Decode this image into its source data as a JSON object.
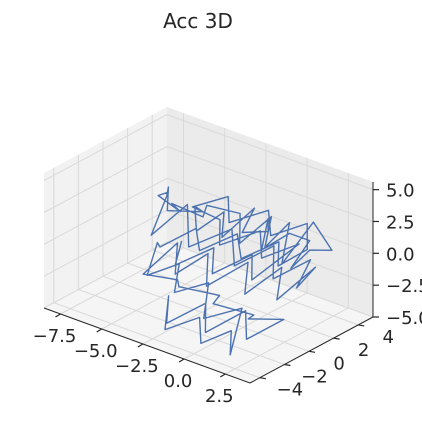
{
  "chart_data": {
    "type": "line",
    "title": "Acc 3D",
    "projection": "3d",
    "x": {
      "ticks": [
        -7.5,
        -5.0,
        -2.5,
        0.0,
        2.5
      ],
      "tick_labels": [
        "−7.5",
        "−5.0",
        "−2.5",
        "0.0",
        "2.5"
      ],
      "range": [
        -8.5,
        4.0
      ]
    },
    "y": {
      "ticks": [
        -4,
        -2,
        0,
        2,
        4
      ],
      "tick_labels": [
        "−4",
        "−2",
        "0",
        "2",
        "4"
      ],
      "range": [
        -4.8,
        5.2
      ]
    },
    "z": {
      "ticks": [
        -5.0,
        -2.5,
        0.0,
        2.5,
        5.0
      ],
      "tick_labels": [
        "−5.0",
        "−2.5",
        "0.0",
        "2.5",
        "5.0"
      ],
      "range": [
        -5.0,
        5.6
      ]
    },
    "grid": true,
    "colors": {
      "series": "#4c72b0",
      "pane_left": "#f2f2f2",
      "pane_back": "#ebebeb",
      "pane_floor": "#f5f5f5"
    },
    "series": [
      {
        "name": "",
        "points_xyz": [
          [
            -6.5,
            2.5,
            1.0
          ],
          [
            -5.8,
            1.7,
            2.4
          ],
          [
            -5.2,
            0.8,
            1.3
          ],
          [
            -4.6,
            2.9,
            0.4
          ],
          [
            -3.9,
            1.3,
            2.0
          ],
          [
            -3.2,
            0.5,
            0.8
          ],
          [
            -2.8,
            2.2,
            1.6
          ],
          [
            -2.1,
            1.1,
            0.5
          ],
          [
            -1.7,
            3.2,
            1.9
          ],
          [
            -1.1,
            1.4,
            1.2
          ],
          [
            -0.5,
            2.7,
            0.9
          ],
          [
            0.1,
            1.9,
            2.6
          ],
          [
            0.6,
            0.7,
            1.0
          ],
          [
            1.1,
            2.3,
            1.7
          ],
          [
            1.8,
            3.0,
            1.1
          ],
          [
            2.3,
            0.8,
            0.3
          ],
          [
            2.7,
            1.8,
            1.4
          ],
          [
            3.0,
            3.2,
            0.8
          ],
          [
            2.4,
            2.5,
            3.1
          ],
          [
            1.6,
            1.0,
            0.2
          ],
          [
            0.8,
            2.7,
            2.2
          ],
          [
            0.2,
            1.5,
            0.6
          ],
          [
            -0.6,
            3.1,
            1.8
          ],
          [
            -1.4,
            1.6,
            0.1
          ],
          [
            -2.2,
            2.7,
            1.5
          ],
          [
            -3.1,
            1.2,
            2.5
          ],
          [
            -4.0,
            2.1,
            0.7
          ],
          [
            -5.0,
            0.9,
            1.9
          ],
          [
            -5.6,
            2.4,
            0.2
          ],
          [
            -6.2,
            1.4,
            1.7
          ],
          [
            -7.0,
            3.3,
            0.6
          ],
          [
            -6.1,
            0.7,
            -1.0
          ],
          [
            -4.8,
            1.9,
            1.4
          ],
          [
            -3.6,
            0.4,
            -0.6
          ],
          [
            -2.4,
            2.3,
            0.4
          ],
          [
            -1.2,
            0.9,
            -1.2
          ],
          [
            0.0,
            2.5,
            0.1
          ],
          [
            1.0,
            1.1,
            -1.3
          ],
          [
            2.0,
            2.8,
            -0.2
          ],
          [
            2.8,
            0.6,
            -0.9
          ],
          [
            3.2,
            1.6,
            0.4
          ],
          [
            2.2,
            -0.2,
            -1.7
          ],
          [
            1.3,
            1.4,
            -0.4
          ],
          [
            0.4,
            -0.4,
            -2.0
          ],
          [
            -0.6,
            1.2,
            -0.8
          ],
          [
            -1.7,
            -0.7,
            -2.2
          ],
          [
            -2.8,
            0.9,
            -1.0
          ],
          [
            -3.9,
            -0.3,
            -2.5
          ],
          [
            -4.8,
            1.1,
            -1.2
          ],
          [
            -5.4,
            -0.9,
            -2.9
          ],
          [
            -4.2,
            0.3,
            -3.4
          ],
          [
            -3.0,
            -1.2,
            -2.6
          ],
          [
            -1.8,
            0.5,
            -3.6
          ],
          [
            -0.7,
            -1.5,
            -2.7
          ],
          [
            0.5,
            0.2,
            -3.9
          ],
          [
            1.5,
            -1.6,
            -2.8
          ],
          [
            2.4,
            0.1,
            -3.3
          ],
          [
            1.7,
            -2.0,
            -4.1
          ],
          [
            0.6,
            -0.6,
            -3.1
          ],
          [
            -0.5,
            -2.4,
            -4.4
          ],
          [
            -1.6,
            -0.9,
            -3.4
          ],
          [
            -2.7,
            -2.6,
            -4.6
          ],
          [
            -3.7,
            -1.1,
            -3.7
          ],
          [
            -2.5,
            -3.0,
            -4.8
          ],
          [
            -1.3,
            -1.8,
            -3.9
          ],
          [
            -0.1,
            -3.3,
            -4.6
          ],
          [
            1.0,
            -2.3,
            -3.6
          ],
          [
            1.9,
            -3.6,
            -4.4
          ],
          [
            0.9,
            -1.3,
            -2.4
          ],
          [
            -0.3,
            -2.8,
            -3.0
          ],
          [
            -1.5,
            -0.8,
            -1.8
          ],
          [
            -2.6,
            -2.1,
            -2.4
          ],
          [
            -3.5,
            -0.5,
            -1.4
          ],
          [
            -4.4,
            -1.9,
            -2.0
          ],
          [
            -5.2,
            0.0,
            -0.8
          ],
          [
            -4.3,
            -1.0,
            -0.2
          ],
          [
            -3.3,
            0.6,
            0.9
          ],
          [
            -2.2,
            -0.6,
            0.3
          ],
          [
            -1.1,
            1.0,
            1.3
          ],
          [
            0.1,
            -0.3,
            0.6
          ],
          [
            1.2,
            1.3,
            1.6
          ],
          [
            2.2,
            -0.1,
            0.9
          ],
          [
            3.0,
            1.2,
            1.9
          ],
          [
            2.1,
            2.4,
            2.9
          ],
          [
            1.0,
            0.9,
            2.2
          ],
          [
            -0.1,
            2.2,
            3.0
          ],
          [
            -1.3,
            0.6,
            2.3
          ],
          [
            -2.4,
            2.0,
            3.1
          ],
          [
            -3.6,
            0.7,
            2.4
          ],
          [
            -2.6,
            1.6,
            1.4
          ],
          [
            -1.5,
            0.1,
            0.7
          ],
          [
            -0.3,
            1.8,
            1.5
          ],
          [
            0.9,
            0.3,
            0.7
          ],
          [
            1.9,
            2.0,
            1.4
          ],
          [
            0.9,
            -0.5,
            -0.6
          ],
          [
            -0.2,
            1.0,
            0.1
          ],
          [
            -1.2,
            -0.9,
            -0.9
          ],
          [
            -2.3,
            0.7,
            -0.2
          ],
          [
            -3.3,
            -1.1,
            -1.1
          ],
          [
            -4.1,
            0.5,
            -0.4
          ]
        ]
      }
    ]
  }
}
